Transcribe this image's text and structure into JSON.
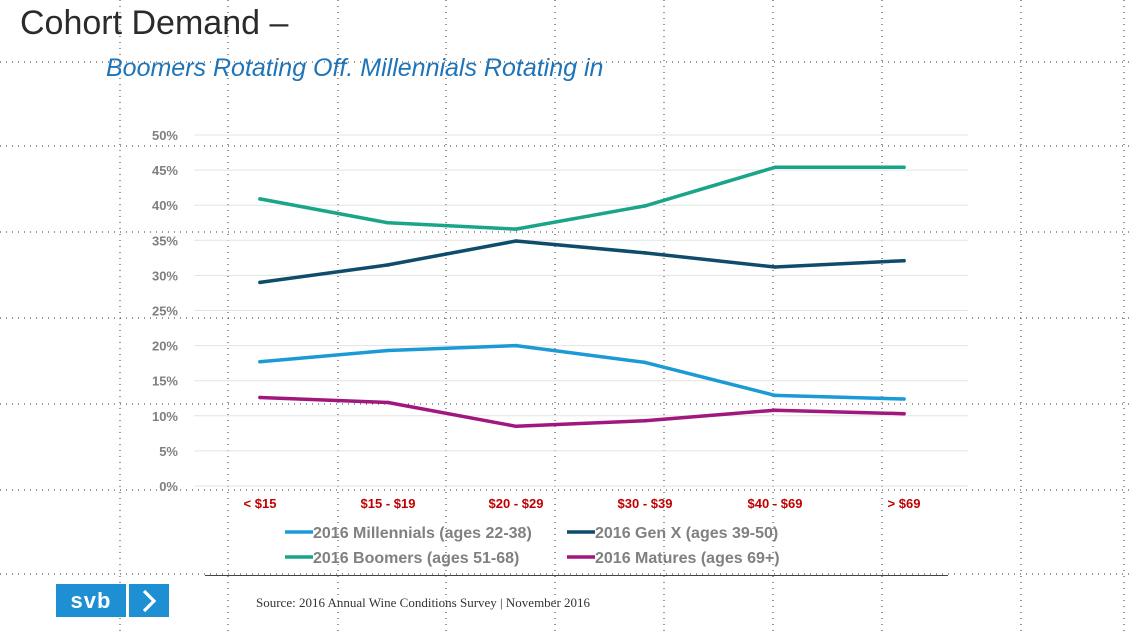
{
  "header": {
    "title": "Cohort Demand –",
    "subtitle": "Boomers Rotating Off. Millennials Rotating in"
  },
  "chart_data": {
    "type": "line",
    "categories": [
      "< $15",
      "$15 - $19",
      "$20 - $29",
      "$30 - $39",
      "$40 - $69",
      "> $69"
    ],
    "y_tick_labels": [
      "0%",
      "5%",
      "10%",
      "15%",
      "20%",
      "25%",
      "30%",
      "35%",
      "40%",
      "45%",
      "50%"
    ],
    "ylim": [
      0,
      50
    ],
    "grid": true,
    "legend_position": "bottom",
    "series": [
      {
        "name": "2016 Millennials (ages 22-38)",
        "color": "#1b9ad6",
        "values": [
          17.7,
          19.3,
          20.0,
          17.6,
          12.9,
          12.4
        ]
      },
      {
        "name": "2016 Gen X (ages 39-50)",
        "color": "#0f4c6b",
        "values": [
          29.0,
          31.5,
          34.9,
          33.2,
          31.2,
          32.1
        ]
      },
      {
        "name": "2016 Boomers (ages 51-68)",
        "color": "#1aa588",
        "values": [
          40.9,
          37.5,
          36.6,
          39.9,
          45.4,
          45.4
        ]
      },
      {
        "name": "2016 Matures (ages 69+)",
        "color": "#a0177e",
        "values": [
          12.6,
          11.9,
          8.5,
          9.3,
          10.8,
          10.3
        ]
      }
    ]
  },
  "footer": {
    "logo_text": "svb",
    "logo_icon": "chevron-right-icon",
    "source": "Source: 2016 Annual Wine Conditions Survey | November 2016"
  }
}
